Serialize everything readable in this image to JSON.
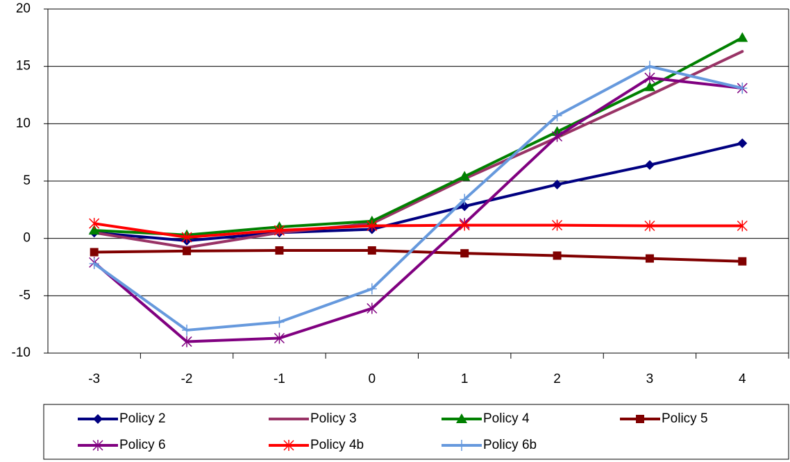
{
  "chart_data": {
    "type": "line",
    "categories": [
      "-3",
      "-2",
      "-1",
      "0",
      "1",
      "2",
      "3",
      "4"
    ],
    "ylim": [
      -10,
      20
    ],
    "yticks": [
      -10,
      -5,
      0,
      5,
      10,
      15,
      20
    ],
    "grid": true,
    "series": [
      {
        "name": "Policy 2",
        "color": "#000080",
        "marker": "diamond",
        "values": [
          0.5,
          -0.2,
          0.5,
          0.8,
          2.8,
          4.7,
          6.4,
          8.3
        ]
      },
      {
        "name": "Policy 3",
        "color": "#993366",
        "marker": "none",
        "values": [
          0.5,
          -0.8,
          0.5,
          1.3,
          5.2,
          8.8,
          12.5,
          16.3
        ]
      },
      {
        "name": "Policy 4",
        "color": "#008000",
        "marker": "triangle",
        "values": [
          0.7,
          0.3,
          1.0,
          1.5,
          5.4,
          9.3,
          13.2,
          17.5
        ]
      },
      {
        "name": "Policy 5",
        "color": "#800000",
        "marker": "square",
        "values": [
          -1.2,
          -1.1,
          -1.05,
          -1.05,
          -1.3,
          -1.5,
          -1.75,
          -2.0
        ]
      },
      {
        "name": "Policy 6",
        "color": "#800080",
        "marker": "star",
        "values": [
          -2.1,
          -9.0,
          -8.7,
          -6.1,
          1.3,
          8.9,
          14.0,
          13.1
        ]
      },
      {
        "name": "Policy 4b",
        "color": "#ff0000",
        "marker": "star",
        "values": [
          1.3,
          0.1,
          0.7,
          1.1,
          1.15,
          1.15,
          1.1,
          1.1
        ]
      },
      {
        "name": "Policy 6b",
        "color": "#6699dd",
        "marker": "plus",
        "values": [
          -2.2,
          -8.0,
          -7.3,
          -4.4,
          3.4,
          10.7,
          15.0,
          13.1
        ]
      }
    ]
  }
}
